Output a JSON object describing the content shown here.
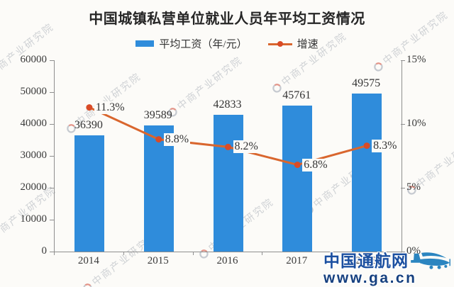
{
  "title": "中国城镇私营单位就业人员年平均工资情况",
  "legend": {
    "bar_label": "平均工资（年/元）",
    "line_label": "增速"
  },
  "watermark": {
    "text": "中商产业研究院"
  },
  "logo": {
    "name": "中国通航网",
    "url": "www.ga.cn"
  },
  "colors": {
    "bar": "#2f8cdb",
    "line": "#d9662e",
    "dot": "#d94b27",
    "axis": "#8f8f8f",
    "logo_text": "#1b4fa0",
    "logo_url": "#16407f",
    "plane": "#2b85c0"
  },
  "chart_data": {
    "type": "bar",
    "subtype": "bar+line combo, dual axis",
    "title": "中国城镇私营单位就业人员年平均工资情况",
    "categories": [
      "2014",
      "2015",
      "2016",
      "2017",
      "2018"
    ],
    "series": [
      {
        "name": "平均工资（年/元）",
        "type": "bar",
        "axis": "left",
        "values": [
          36390,
          39589,
          42833,
          45761,
          49575
        ],
        "labels": [
          "36390",
          "39589",
          "42833",
          "45761",
          "49575"
        ]
      },
      {
        "name": "增速",
        "type": "line",
        "axis": "right",
        "values": [
          11.3,
          8.8,
          8.2,
          6.8,
          8.3
        ],
        "labels": [
          "11.3%",
          "8.8%",
          "8.2%",
          "6.8%",
          "8.3%"
        ]
      }
    ],
    "left_axis": {
      "min": 0,
      "max": 60000,
      "step": 10000,
      "ticks": [
        "60000",
        "50000",
        "40000",
        "30000",
        "20000",
        "10000",
        "0"
      ]
    },
    "right_axis": {
      "min": 0,
      "max": 15,
      "step": 5,
      "ticks": [
        "15%",
        "10%",
        "5%",
        "0%"
      ]
    },
    "grid": false,
    "legend_position": "top"
  }
}
